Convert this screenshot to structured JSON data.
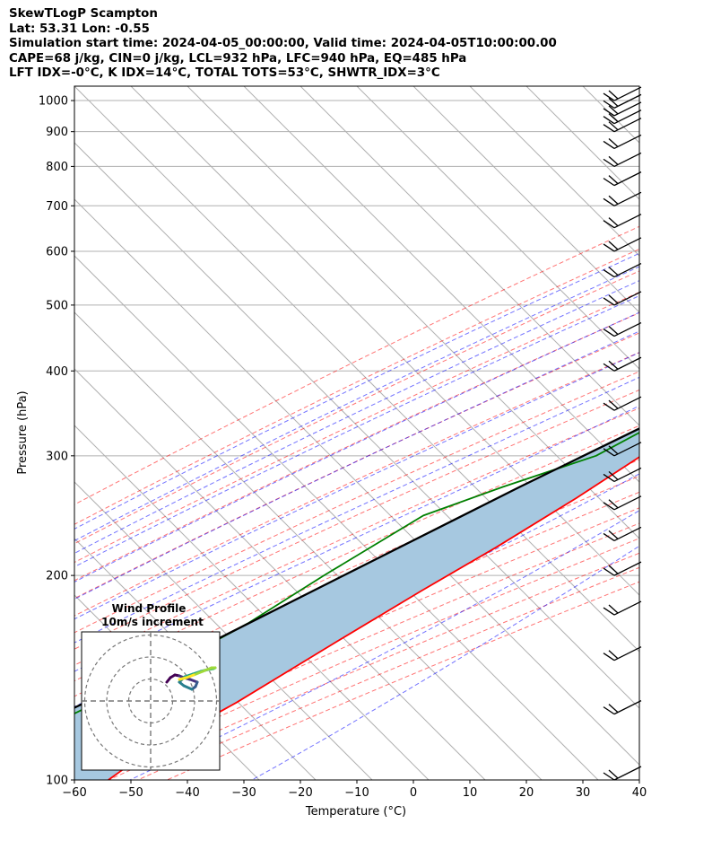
{
  "header": {
    "line1": "SkewTLogP Scampton",
    "line2": "Lat: 53.31   Lon: -0.55",
    "line3": "Simulation start time: 2024-04-05_00:00:00, Valid time: 2024-04-05T10:00:00.00",
    "line4": "CAPE=68 j/kg, CIN=0 j/kg, LCL=932 hPa, LFC=940 hPa, EQ=485 hPa",
    "line5": "LFT IDX=-0°C, K IDX=14°C, TOTAL TOTS=53°C, SHWTR_IDX=3°C"
  },
  "chart_data": {
    "type": "line",
    "xlabel": "Temperature (°C)",
    "ylabel": "Pressure (hPa)",
    "xlim": [
      -60,
      40
    ],
    "ylim": [
      1050,
      100
    ],
    "x_ticks": [
      -60,
      -50,
      -40,
      -30,
      -20,
      -10,
      0,
      10,
      20,
      30,
      40
    ],
    "x_tick_labels": [
      "−60",
      "−50",
      "−40",
      "−30",
      "−20",
      "−10",
      "0",
      "10",
      "20",
      "30",
      "40"
    ],
    "y_ticks": [
      1000,
      900,
      800,
      700,
      600,
      500,
      400,
      300,
      200,
      100
    ],
    "y_tick_labels": [
      "1000",
      "900",
      "800",
      "700",
      "600",
      "500",
      "400",
      "300",
      "200",
      "100"
    ],
    "grid": true,
    "skew": "45°",
    "series": [
      {
        "key": "temperature",
        "color": "#ff0000",
        "points": [
          [
            15.0,
            990
          ],
          [
            11.0,
            940
          ],
          [
            8.0,
            860
          ],
          [
            4.5,
            760
          ],
          [
            2.0,
            680
          ],
          [
            -2.0,
            560
          ],
          [
            -5.0,
            490
          ],
          [
            -10.5,
            380
          ],
          [
            -15.0,
            340
          ],
          [
            -17.0,
            300
          ],
          [
            -21.0,
            260
          ],
          [
            -26.5,
            220
          ],
          [
            -32.0,
            190
          ],
          [
            -38.0,
            160
          ],
          [
            -45.0,
            130
          ],
          [
            -52.0,
            110
          ],
          [
            -54.0,
            100
          ]
        ]
      },
      {
        "key": "dewpoint",
        "color": "#008000",
        "points": [
          [
            11.0,
            985
          ],
          [
            10.5,
            950
          ],
          [
            8.0,
            920
          ],
          [
            5.0,
            850
          ],
          [
            0.0,
            780
          ],
          [
            -7.0,
            720
          ],
          [
            -12.5,
            660
          ],
          [
            -6.0,
            600
          ],
          [
            -4.0,
            550
          ],
          [
            -6.0,
            510
          ],
          [
            -14.0,
            450
          ],
          [
            -15.0,
            400
          ],
          [
            -18.0,
            350
          ],
          [
            -25.0,
            300
          ],
          [
            -36.0,
            270
          ],
          [
            -45.0,
            245
          ],
          [
            -52.0,
            200
          ],
          [
            -57.0,
            170
          ],
          [
            -64.0,
            145
          ],
          [
            -74.0,
            120
          ],
          [
            -81.0,
            100
          ]
        ]
      },
      {
        "key": "parcel",
        "color": "#000000",
        "points": [
          [
            18.0,
            1000
          ],
          [
            15.0,
            950
          ],
          [
            10.0,
            850
          ],
          [
            5.5,
            750
          ],
          [
            2.0,
            650
          ],
          [
            -2.0,
            550
          ],
          [
            -8.0,
            450
          ],
          [
            -13.0,
            400
          ],
          [
            -22.0,
            330
          ],
          [
            -33.0,
            270
          ],
          [
            -46.0,
            210
          ],
          [
            -60.0,
            160
          ],
          [
            -74.0,
            125
          ],
          [
            -90.0,
            100
          ]
        ]
      }
    ],
    "cape_fill_color": "#a6c8e0",
    "reference_lines": {
      "dry_adiabats": "red dashed",
      "moist_adiabats": "blue dashed",
      "mixing_ratio": "purple dashed",
      "isotherms": "grey"
    },
    "wind_barbs": {
      "pressures": [
        1000,
        975,
        950,
        925,
        900,
        850,
        800,
        750,
        700,
        650,
        600,
        550,
        500,
        450,
        400,
        350,
        300,
        275,
        250,
        225,
        200,
        175,
        150,
        125,
        100
      ],
      "color": "#000000"
    },
    "inset": {
      "title": "Wind Profile",
      "subtitle": "10m/s increment",
      "type": "hodograph",
      "rings_ms": [
        10,
        20,
        30
      ]
    }
  }
}
